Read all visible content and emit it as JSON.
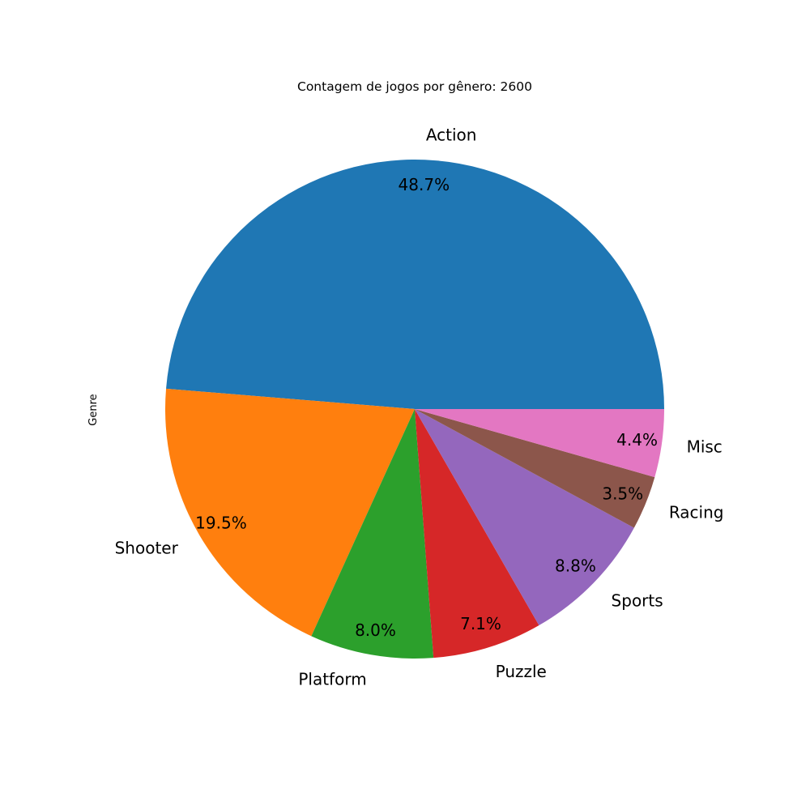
{
  "chart_data": {
    "type": "pie",
    "title": "Contagem de jogos por gênero: 2600",
    "ylabel": "Genre",
    "start_angle_deg": 0,
    "direction": "counterclockwise",
    "slices": [
      {
        "label": "Action",
        "value": 48.7,
        "pct_label": "48.7%",
        "color": "#1f77b4"
      },
      {
        "label": "Shooter",
        "value": 19.5,
        "pct_label": "19.5%",
        "color": "#ff7f0e"
      },
      {
        "label": "Platform",
        "value": 8.0,
        "pct_label": "8.0%",
        "color": "#2ca02c"
      },
      {
        "label": "Puzzle",
        "value": 7.1,
        "pct_label": "7.1%",
        "color": "#d62728"
      },
      {
        "label": "Sports",
        "value": 8.8,
        "pct_label": "8.8%",
        "color": "#9467bd"
      },
      {
        "label": "Racing",
        "value": 3.5,
        "pct_label": "3.5%",
        "color": "#8c564b"
      },
      {
        "label": "Misc",
        "value": 4.4,
        "pct_label": "4.4%",
        "color": "#e377c2"
      }
    ]
  }
}
